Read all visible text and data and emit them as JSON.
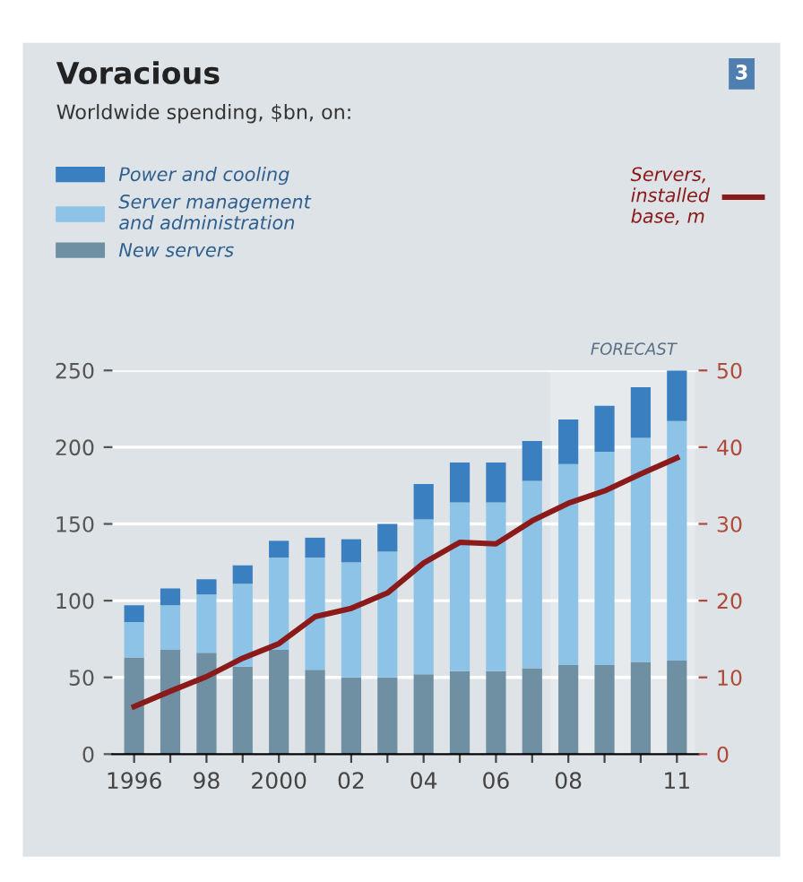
{
  "chart_data": {
    "type": "bar",
    "stacked": true,
    "title": "Voracious",
    "subtitle": "Worldwide spending, $bn, on:",
    "categories": [
      "1996",
      null,
      "98",
      null,
      "2000",
      null,
      "02",
      null,
      "04",
      null,
      "06",
      null,
      "08",
      null,
      null,
      "11"
    ],
    "series": [
      {
        "name": "New servers",
        "color": "#6f8fa3",
        "values": [
          63,
          68,
          66,
          57,
          68,
          55,
          50,
          50,
          52,
          54,
          54,
          56,
          58,
          58,
          60,
          61
        ]
      },
      {
        "name": "Server management\nand administration",
        "color": "#8ec3e8",
        "values": [
          23,
          29,
          38,
          54,
          60,
          73,
          75,
          82,
          101,
          110,
          110,
          122,
          131,
          139,
          146,
          156
        ]
      },
      {
        "name": "Power and cooling",
        "color": "#3a7fc0",
        "values": [
          11,
          11,
          10,
          12,
          11,
          13,
          15,
          18,
          23,
          26,
          26,
          26,
          29,
          30,
          33,
          33
        ]
      },
      {
        "name": "Servers,\ninstalled\nbase, m",
        "type": "line",
        "axis": "y2",
        "color": "#8b1a1a",
        "values": [
          6.2,
          8.2,
          10.1,
          12.5,
          14.4,
          17.9,
          19,
          21,
          24.9,
          27.6,
          27.4,
          30.4,
          32.7,
          34.3,
          36.5,
          38.6
        ]
      }
    ],
    "ylim": [
      0,
      250
    ],
    "yticks": [
      0,
      50,
      100,
      150,
      200,
      250
    ],
    "y2lim": [
      0,
      50
    ],
    "y2ticks": [
      0,
      10,
      20,
      30,
      40,
      50
    ],
    "bands": [
      {
        "axis": "x",
        "from": "08",
        "to": "11",
        "label": "FORECAST",
        "color": "#e6eaec"
      }
    ],
    "annotations": [
      "3"
    ],
    "grid": "y",
    "legend": "top"
  }
}
